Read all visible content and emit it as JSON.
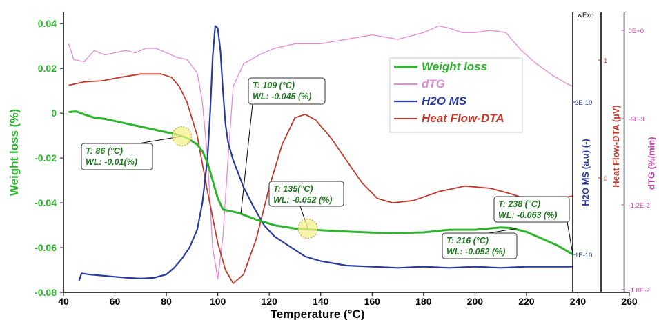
{
  "chart_data": {
    "type": "line",
    "title": "",
    "xlabel": "Temperature  (°C)",
    "ylabel": "Weight loss (%)",
    "xlim": [
      40,
      260
    ],
    "ylim": [
      -0.08,
      0.045
    ],
    "x_ticks": [
      "40",
      "60",
      "80",
      "100",
      "120",
      "140",
      "160",
      "180",
      "200",
      "220",
      "240",
      "260"
    ],
    "y_ticks": [
      "0.04",
      "0.02",
      "0",
      "-0.02",
      "-0.04",
      "-0.06",
      "-0.08"
    ],
    "grid": false,
    "legend_position": "top-right",
    "right_axes": [
      {
        "title": "H2O MS (a.u) (-)",
        "color": "#2b3b9c",
        "ticks": [
          {
            "label": "2E-10",
            "value": -0.0
          },
          {
            "label": "1E-10",
            "value": -0.0
          }
        ]
      },
      {
        "title": "Heat Flow-DTA (µV)",
        "color": "#c0392b",
        "ticks": [
          {
            "label": "1"
          },
          {
            "label": "0"
          }
        ]
      },
      {
        "title": "dTG (%/min)",
        "color": "#c13fa8",
        "ticks": [
          {
            "label": "0E+0"
          },
          {
            "label": "-6E-3"
          },
          {
            "label": "-1.2E-2"
          },
          {
            "label": "-1.8E-2"
          }
        ]
      }
    ],
    "exo_label": "Exo",
    "series": [
      {
        "name": "Weight loss",
        "color": "#2db52d",
        "width": 3,
        "x": [
          42,
          45,
          48,
          52,
          56,
          62,
          70,
          78,
          84,
          88,
          92,
          94,
          96,
          98,
          100,
          102,
          104,
          108,
          115,
          122,
          130,
          140,
          150,
          160,
          170,
          180,
          190,
          200,
          210,
          214,
          220,
          226,
          232,
          238
        ],
        "y": [
          0.0005,
          0.0008,
          -0.0005,
          -0.002,
          -0.0025,
          -0.004,
          -0.006,
          -0.008,
          -0.0095,
          -0.011,
          -0.014,
          -0.017,
          -0.022,
          -0.03,
          -0.038,
          -0.043,
          -0.0435,
          -0.0445,
          -0.0475,
          -0.05,
          -0.0515,
          -0.0522,
          -0.0528,
          -0.0533,
          -0.0535,
          -0.0532,
          -0.052,
          -0.052,
          -0.051,
          -0.0512,
          -0.053,
          -0.056,
          -0.059,
          -0.063
        ]
      },
      {
        "name": "dTG",
        "color": "#e38ad6",
        "width": 1.3,
        "x": [
          42,
          44,
          48,
          52,
          56,
          60,
          64,
          68,
          72,
          76,
          80,
          84,
          88,
          92,
          94,
          96,
          98,
          100,
          102,
          104,
          106,
          110,
          116,
          122,
          130,
          140,
          150,
          160,
          170,
          180,
          186,
          190,
          195,
          200,
          206,
          212,
          218,
          224,
          230,
          236,
          238
        ],
        "y": [
          0.031,
          0.024,
          0.023,
          0.028,
          0.026,
          0.027,
          0.028,
          0.027,
          0.029,
          0.029,
          0.027,
          0.025,
          0.024,
          0.018,
          0.005,
          -0.02,
          -0.06,
          -0.074,
          -0.055,
          -0.02,
          0.012,
          0.022,
          0.026,
          0.029,
          0.031,
          0.031,
          0.033,
          0.035,
          0.033,
          0.036,
          0.039,
          0.038,
          0.036,
          0.036,
          0.037,
          0.036,
          0.028,
          0.022,
          0.017,
          0.013,
          0.012
        ]
      },
      {
        "name": "H2O MS",
        "color": "#2b3b9c",
        "width": 2.2,
        "x": [
          46,
          47,
          50,
          55,
          60,
          65,
          70,
          75,
          80,
          83,
          86,
          89,
          92,
          94,
          96,
          97,
          98,
          99,
          100,
          101,
          102,
          103,
          104,
          106,
          108,
          110,
          114,
          118,
          122,
          126,
          130,
          134,
          140,
          150,
          160,
          170,
          180,
          190,
          200,
          210,
          220,
          230,
          238
        ],
        "y": [
          -0.075,
          -0.0715,
          -0.072,
          -0.0725,
          -0.073,
          -0.0735,
          -0.0738,
          -0.0735,
          -0.072,
          -0.069,
          -0.065,
          -0.06,
          -0.052,
          -0.04,
          -0.02,
          0.0,
          0.025,
          0.039,
          0.038,
          0.028,
          0.01,
          -0.005,
          -0.013,
          -0.021,
          -0.027,
          -0.033,
          -0.042,
          -0.05,
          -0.055,
          -0.058,
          -0.061,
          -0.064,
          -0.066,
          -0.068,
          -0.0685,
          -0.069,
          -0.0685,
          -0.069,
          -0.0685,
          -0.069,
          -0.0685,
          -0.0685,
          -0.0685
        ]
      },
      {
        "name": "Heat Flow-DTA",
        "color": "#c0392b",
        "width": 1.8,
        "x": [
          42,
          48,
          55,
          62,
          70,
          78,
          82,
          85,
          88,
          92,
          96,
          100,
          103,
          106,
          110,
          115,
          120,
          125,
          130,
          134,
          138,
          144,
          150,
          156,
          162,
          168,
          176,
          186,
          196,
          206,
          214,
          222,
          230,
          238
        ],
        "y": [
          0.0125,
          0.014,
          0.0145,
          0.016,
          0.0175,
          0.0175,
          0.016,
          0.012,
          0.005,
          -0.01,
          -0.035,
          -0.058,
          -0.07,
          -0.076,
          -0.072,
          -0.056,
          -0.033,
          -0.014,
          -0.002,
          -0.0005,
          -0.003,
          -0.011,
          -0.021,
          -0.031,
          -0.038,
          -0.04,
          -0.039,
          -0.035,
          -0.0325,
          -0.0335,
          -0.036,
          -0.039,
          -0.0385,
          -0.037
        ]
      }
    ],
    "annotations": [
      {
        "lines": [
          "T: 86 (°C)",
          "WL: -0.01(%)"
        ],
        "point": [
          86,
          -0.0103
        ],
        "marker": true
      },
      {
        "lines": [
          "T: 109 (°C)",
          "WL: -0.045 (%)"
        ],
        "point": [
          109,
          -0.0447
        ],
        "marker": false
      },
      {
        "lines": [
          "T: 135(°C)",
          "WL: -0.052 (%)"
        ],
        "point": [
          135,
          -0.0515
        ],
        "marker": true
      },
      {
        "lines": [
          "T: 216 (°C)",
          "WL: -0.052 (%)"
        ],
        "point": [
          216,
          -0.0515
        ],
        "marker": false
      },
      {
        "lines": [
          "T: 238 (°C)",
          "WL: -0.063 (%)"
        ],
        "point": [
          238,
          -0.0628
        ],
        "marker": false
      }
    ]
  }
}
